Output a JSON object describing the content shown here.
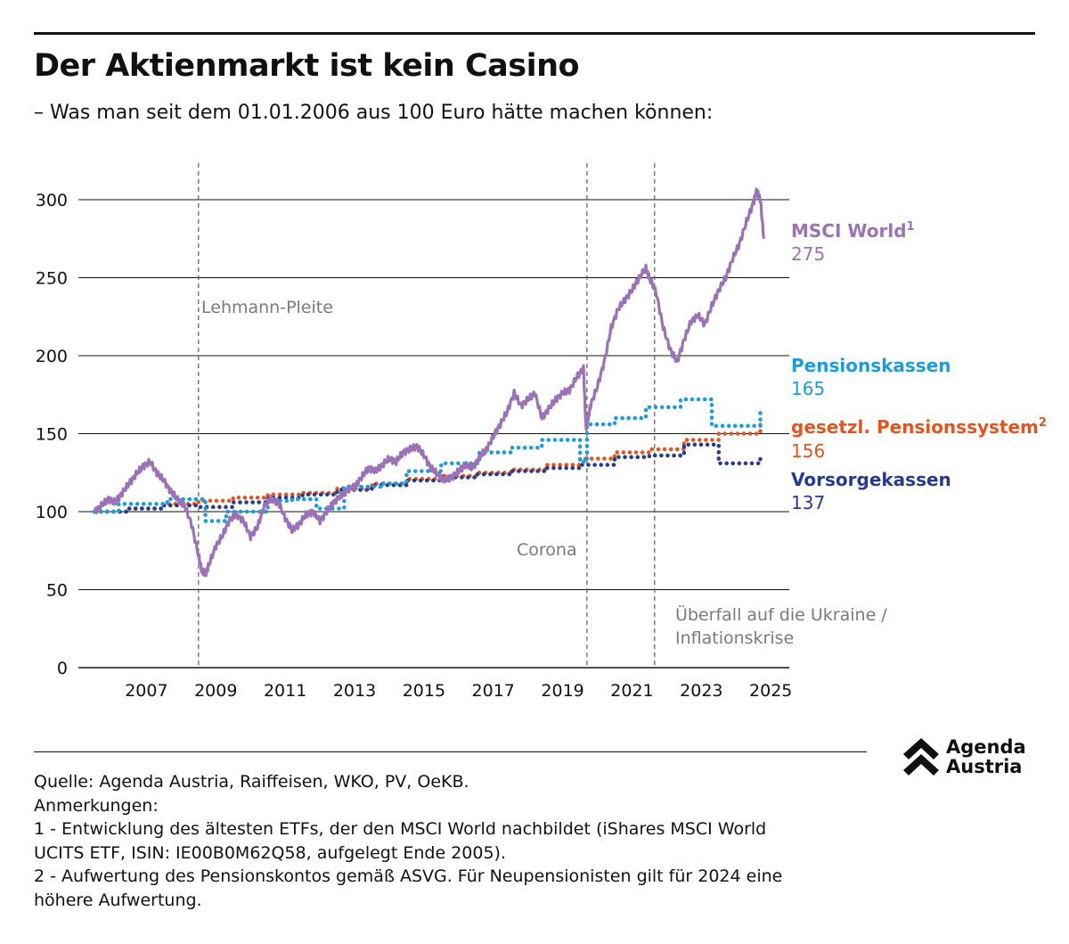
{
  "title": "Der Aktienmarkt ist kein Casino",
  "subtitle": "– Was man seit dem 01.01.2006 aus 100 Euro hätte machen können:",
  "colors": {
    "msci": "#9b72b5",
    "pensionskassen": "#1c9cd8",
    "pension_system": "#e4541f",
    "vorsorgekassen": "#283a8c",
    "annotation": "#7a7a7a"
  },
  "chart_data": {
    "type": "line",
    "ylim": [
      0,
      320
    ],
    "xlim": [
      2006.0,
      2025.7
    ],
    "y_ticks": [
      "0",
      "50",
      "100",
      "150",
      "200",
      "250",
      "300"
    ],
    "y_tick_values": [
      0,
      50,
      100,
      150,
      200,
      250,
      300
    ],
    "x_ticks": [
      "2007",
      "2009",
      "2011",
      "2013",
      "2015",
      "2017",
      "2019",
      "2021",
      "2023",
      "2025"
    ],
    "x_tick_values": [
      2007.5,
      2009.5,
      2011.5,
      2013.5,
      2015.5,
      2017.5,
      2019.5,
      2021.5,
      2023.5,
      2025.5
    ],
    "grid": true,
    "events": [
      {
        "x": 2009.0,
        "label": "Lehmann-Pleite"
      },
      {
        "x": 2020.2,
        "label": "Corona"
      },
      {
        "x": 2022.15,
        "label": "Überfall auf die Ukraine / Inflationskrise"
      }
    ],
    "series": [
      {
        "name": "MSCI World",
        "note": "1",
        "end_label": "275",
        "style": "solid",
        "x": [
          2006.0,
          2006.2,
          2006.4,
          2006.6,
          2006.8,
          2007.0,
          2007.2,
          2007.4,
          2007.6,
          2007.8,
          2008.0,
          2008.2,
          2008.4,
          2008.6,
          2008.8,
          2009.0,
          2009.1,
          2009.2,
          2009.3,
          2009.5,
          2009.7,
          2009.9,
          2010.1,
          2010.3,
          2010.5,
          2010.7,
          2010.9,
          2011.1,
          2011.3,
          2011.5,
          2011.7,
          2011.9,
          2012.1,
          2012.3,
          2012.5,
          2012.7,
          2012.9,
          2013.1,
          2013.3,
          2013.5,
          2013.7,
          2013.9,
          2014.1,
          2014.3,
          2014.5,
          2014.7,
          2014.9,
          2015.1,
          2015.3,
          2015.5,
          2015.7,
          2015.9,
          2016.1,
          2016.3,
          2016.5,
          2016.7,
          2016.9,
          2017.1,
          2017.3,
          2017.5,
          2017.7,
          2017.9,
          2018.1,
          2018.3,
          2018.5,
          2018.7,
          2018.9,
          2019.1,
          2019.3,
          2019.5,
          2019.7,
          2019.9,
          2020.1,
          2020.17,
          2020.22,
          2020.3,
          2020.5,
          2020.7,
          2020.9,
          2021.1,
          2021.3,
          2021.5,
          2021.7,
          2021.9,
          2022.0,
          2022.2,
          2022.4,
          2022.6,
          2022.8,
          2023.0,
          2023.2,
          2023.4,
          2023.6,
          2023.8,
          2024.0,
          2024.2,
          2024.4,
          2024.6,
          2024.8,
          2025.0,
          2025.1,
          2025.2,
          2025.3
        ],
        "y": [
          100,
          104,
          108,
          106,
          112,
          118,
          124,
          129,
          132,
          125,
          120,
          113,
          108,
          104,
          92,
          72,
          62,
          60,
          66,
          78,
          85,
          95,
          98,
          94,
          84,
          90,
          104,
          108,
          106,
          96,
          88,
          92,
          98,
          100,
          94,
          100,
          106,
          110,
          114,
          116,
          122,
          128,
          126,
          130,
          134,
          132,
          138,
          140,
          142,
          136,
          128,
          124,
          120,
          122,
          126,
          130,
          128,
          135,
          140,
          148,
          156,
          164,
          176,
          168,
          172,
          176,
          160,
          166,
          172,
          176,
          178,
          186,
          192,
          154,
          158,
          168,
          180,
          196,
          218,
          230,
          236,
          242,
          250,
          256,
          250,
          240,
          218,
          204,
          196,
          210,
          222,
          226,
          220,
          232,
          242,
          250,
          262,
          272,
          286,
          298,
          306,
          300,
          275
        ]
      },
      {
        "name": "Pensionskassen",
        "end_label": "165",
        "style": "dotted",
        "x": [
          2006.0,
          2006.7,
          2008.1,
          2009.2,
          2009.8,
          2011.0,
          2011.7,
          2012.4,
          2013.2,
          2014.3,
          2015.0,
          2016.0,
          2017.1,
          2018.0,
          2018.9,
          2020.0,
          2020.2,
          2021.0,
          2021.9,
          2022.9,
          2023.8,
          2025.2
        ],
        "y": [
          100,
          105,
          108,
          94,
          100,
          107,
          108,
          102,
          116,
          118,
          126,
          131,
          138,
          141,
          146,
          132,
          156,
          160,
          167,
          172,
          155,
          165
        ]
      },
      {
        "name": "gesetzl. Pensionssystem",
        "note": "2",
        "end_label": "156",
        "style": "dotted",
        "x": [
          2006.0,
          2007.0,
          2008.0,
          2009.0,
          2010.0,
          2011.0,
          2012.0,
          2013.0,
          2014.0,
          2015.0,
          2016.0,
          2017.0,
          2018.0,
          2019.0,
          2020.0,
          2021.0,
          2022.0,
          2023.0,
          2024.0,
          2025.2
        ],
        "y": [
          100,
          102,
          105,
          107,
          109,
          111,
          112,
          115,
          118,
          121,
          123,
          125,
          127,
          130,
          134,
          138,
          140,
          146,
          150,
          156
        ]
      },
      {
        "name": "Vorsorgekassen",
        "end_label": "137",
        "style": "dotted",
        "x": [
          2006.0,
          2007.0,
          2008.0,
          2009.0,
          2010.0,
          2011.0,
          2012.0,
          2013.0,
          2014.0,
          2015.0,
          2016.0,
          2017.0,
          2018.0,
          2019.0,
          2020.0,
          2021.0,
          2022.0,
          2023.0,
          2024.0,
          2025.2
        ],
        "y": [
          100,
          102,
          104,
          103,
          106,
          109,
          111,
          114,
          117,
          120,
          122,
          124,
          126,
          128,
          130,
          135,
          136,
          143,
          131,
          137
        ]
      }
    ]
  },
  "logo": {
    "line1": "Agenda",
    "line2": "Austria"
  },
  "footer": {
    "source": "Quelle: Agenda Austria, Raiffeisen, WKO, PV, OeKB.",
    "notes_header": "Anmerkungen:",
    "note1_line1": "1 - Entwicklung des ältesten ETFs, der den MSCI World nachbildet (iShares MSCI World",
    "note1_line2": "UCITS ETF, ISIN: IE00B0M62Q58, aufgelegt Ende 2005).",
    "note2_line1": "2 - Aufwertung des Pensionskontos gemäß ASVG. Für Neupensionisten gilt für 2024 eine",
    "note2_line2": "höhere Aufwertung."
  }
}
